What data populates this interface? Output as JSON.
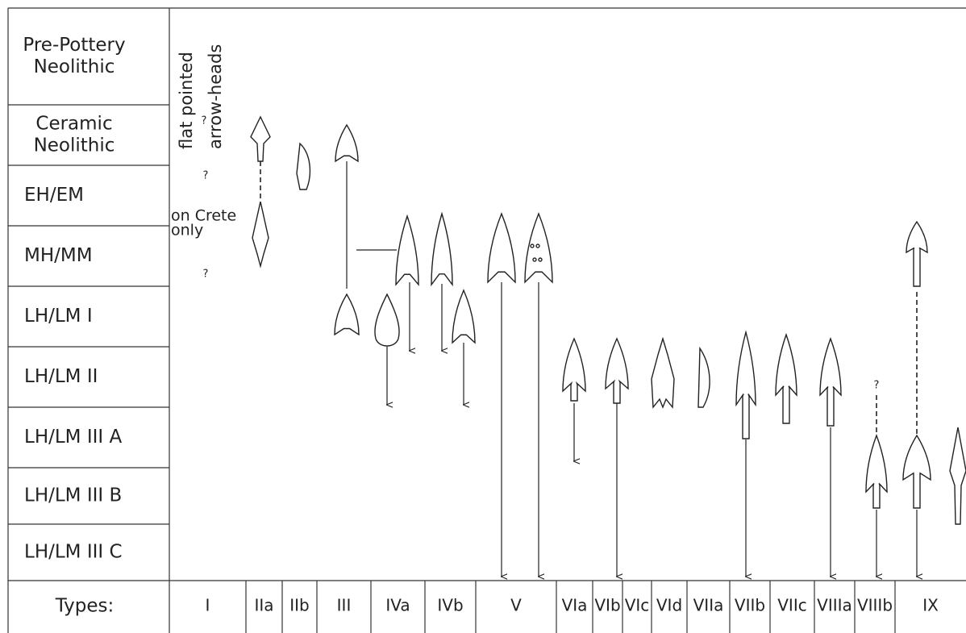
{
  "periods": [
    {
      "lines": [
        "Pre-Pottery",
        "Neolithic"
      ]
    },
    {
      "lines": [
        "Ceramic",
        "Neolithic"
      ]
    },
    {
      "lines": [
        "EH/EM"
      ]
    },
    {
      "lines": [
        "MH/MM"
      ]
    },
    {
      "lines": [
        "LH/LM I"
      ]
    },
    {
      "lines": [
        "LH/LM II"
      ]
    },
    {
      "lines": [
        "LH/LM III A"
      ]
    },
    {
      "lines": [
        "LH/LM III B"
      ]
    },
    {
      "lines": [
        "LH/LM III C"
      ]
    }
  ],
  "types_label": "Types:",
  "types": [
    "I",
    "IIa",
    "IIb",
    "III",
    "IVa",
    "IVb",
    "V",
    "VIa",
    "VIb",
    "VIc",
    "VId",
    "VIIa",
    "VIIb",
    "VIIc",
    "VIIIa",
    "VIIIb",
    "IX"
  ],
  "annotations": {
    "flat_pointed": [
      "flat pointed",
      "arrow-heads"
    ],
    "crete": [
      "on Crete",
      "only"
    ],
    "question_marks": [
      "?",
      "?",
      "?",
      "?"
    ]
  }
}
